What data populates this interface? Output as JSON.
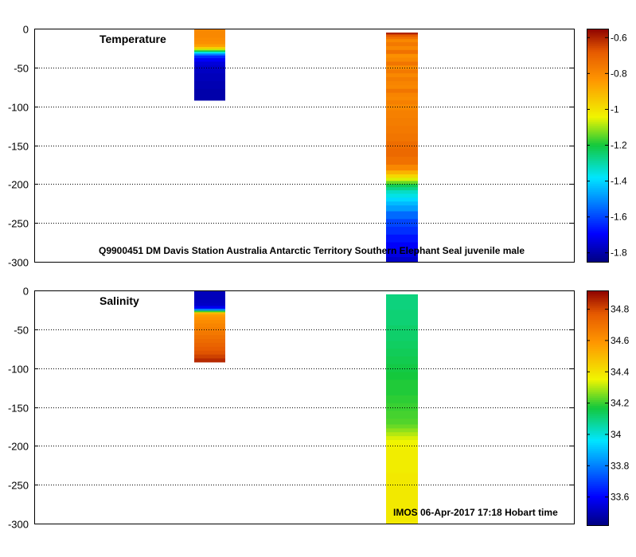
{
  "chart_data": [
    {
      "type": "heatmap",
      "title": "Temperature",
      "annotation": "Q9900451 DM Davis Station Australia Antarctic Territory Southern Elephant Seal juvenile male",
      "ylim": [
        -300,
        0
      ],
      "yticks": [
        0,
        -50,
        -100,
        -150,
        -200,
        -250,
        -300
      ],
      "ytick_labels": [
        "0",
        "-50",
        "-100",
        "-150",
        "-200",
        "-250",
        "-300"
      ],
      "grid": true,
      "colorbar": {
        "clim": [
          -1.85,
          -0.55
        ],
        "ticks": [
          -0.6,
          -0.8,
          -1,
          -1.2,
          -1.4,
          -1.6,
          -1.8
        ],
        "tick_labels": [
          "-0.6",
          "-0.8",
          "-1",
          "-1.2",
          "-1.4",
          "-1.6",
          "-1.8"
        ]
      },
      "profiles": [
        {
          "depth_top": 0,
          "depth_bottom": -92,
          "depths": [
            -2,
            -6,
            -10,
            -14,
            -18,
            -22,
            -25,
            -27,
            -29,
            -31,
            -33,
            -36,
            -40,
            -45,
            -50,
            -55,
            -60,
            -65,
            -70,
            -75,
            -80,
            -85,
            -90
          ],
          "values": [
            -0.8,
            -0.8,
            -0.8,
            -0.81,
            -0.82,
            -0.86,
            -0.96,
            -1.08,
            -1.22,
            -1.38,
            -1.52,
            -1.64,
            -1.7,
            -1.74,
            -1.76,
            -1.77,
            -1.78,
            -1.78,
            -1.79,
            -1.79,
            -1.8,
            -1.8,
            -1.8
          ]
        },
        {
          "depth_top": -5,
          "depth_bottom": -300,
          "depths": [
            -6,
            -9,
            -12,
            -15,
            -20,
            -25,
            -30,
            -35,
            -40,
            -45,
            -50,
            -55,
            -60,
            -65,
            -70,
            -75,
            -80,
            -85,
            -90,
            -95,
            -100,
            -110,
            -120,
            -130,
            -140,
            -150,
            -160,
            -170,
            -180,
            -185,
            -190,
            -194,
            -198,
            -202,
            -206,
            -210,
            -215,
            -220,
            -225,
            -230,
            -240,
            -250,
            -260,
            -270,
            -280,
            -290,
            -298
          ],
          "values": [
            -0.6,
            -0.68,
            -0.74,
            -0.8,
            -0.76,
            -0.8,
            -0.74,
            -0.82,
            -0.8,
            -0.75,
            -0.81,
            -0.76,
            -0.8,
            -0.77,
            -0.79,
            -0.8,
            -0.75,
            -0.79,
            -0.8,
            -0.78,
            -0.8,
            -0.78,
            -0.77,
            -0.76,
            -0.75,
            -0.73,
            -0.72,
            -0.74,
            -0.8,
            -0.9,
            -0.98,
            -1.06,
            -1.14,
            -1.22,
            -1.27,
            -1.33,
            -1.36,
            -1.4,
            -1.44,
            -1.48,
            -1.55,
            -1.6,
            -1.63,
            -1.67,
            -1.7,
            -1.73,
            -1.76
          ]
        }
      ]
    },
    {
      "type": "heatmap",
      "title": "Salinity",
      "annotation": "IMOS 06-Apr-2017 17:18 Hobart time",
      "ylim": [
        -300,
        0
      ],
      "yticks": [
        0,
        -50,
        -100,
        -150,
        -200,
        -250,
        -300
      ],
      "ytick_labels": [
        "0",
        "-50",
        "-100",
        "-150",
        "-200",
        "-250",
        "-300"
      ],
      "grid": true,
      "colorbar": {
        "clim": [
          33.42,
          34.92
        ],
        "ticks": [
          34.8,
          34.6,
          34.4,
          34.2,
          34,
          33.8,
          33.6
        ],
        "tick_labels": [
          "34.8",
          "34.6",
          "34.4",
          "34.2",
          "34",
          "33.8",
          "33.6"
        ]
      },
      "profiles": [
        {
          "depth_top": 0,
          "depth_bottom": -92,
          "depths": [
            -2,
            -6,
            -10,
            -14,
            -18,
            -22,
            -25,
            -27,
            -29,
            -31,
            -33,
            -36,
            -40,
            -45,
            -50,
            -55,
            -60,
            -65,
            -70,
            -75,
            -80,
            -85,
            -90
          ],
          "values": [
            33.5,
            33.5,
            33.5,
            33.51,
            33.52,
            33.58,
            33.8,
            34.2,
            34.48,
            34.55,
            34.58,
            34.6,
            34.62,
            34.64,
            34.66,
            34.68,
            34.7,
            34.72,
            34.74,
            34.76,
            34.78,
            34.81,
            34.85
          ]
        },
        {
          "depth_top": -5,
          "depth_bottom": -300,
          "depths": [
            -10,
            -20,
            -30,
            -40,
            -50,
            -60,
            -70,
            -80,
            -90,
            -100,
            -110,
            -120,
            -130,
            -140,
            -150,
            -160,
            -170,
            -175,
            -180,
            -185,
            -190,
            -195,
            -200,
            -210,
            -220,
            -230,
            -240,
            -250,
            -260,
            -270,
            -280,
            -290,
            -298
          ],
          "values": [
            34.1,
            34.1,
            34.11,
            34.11,
            34.12,
            34.12,
            34.13,
            34.14,
            34.15,
            34.16,
            34.17,
            34.18,
            34.18,
            34.19,
            34.2,
            34.21,
            34.22,
            34.24,
            34.27,
            34.3,
            34.33,
            34.35,
            34.36,
            34.37,
            34.37,
            34.37,
            34.38,
            34.38,
            34.38,
            34.38,
            34.38,
            34.38,
            34.38
          ]
        }
      ]
    }
  ]
}
